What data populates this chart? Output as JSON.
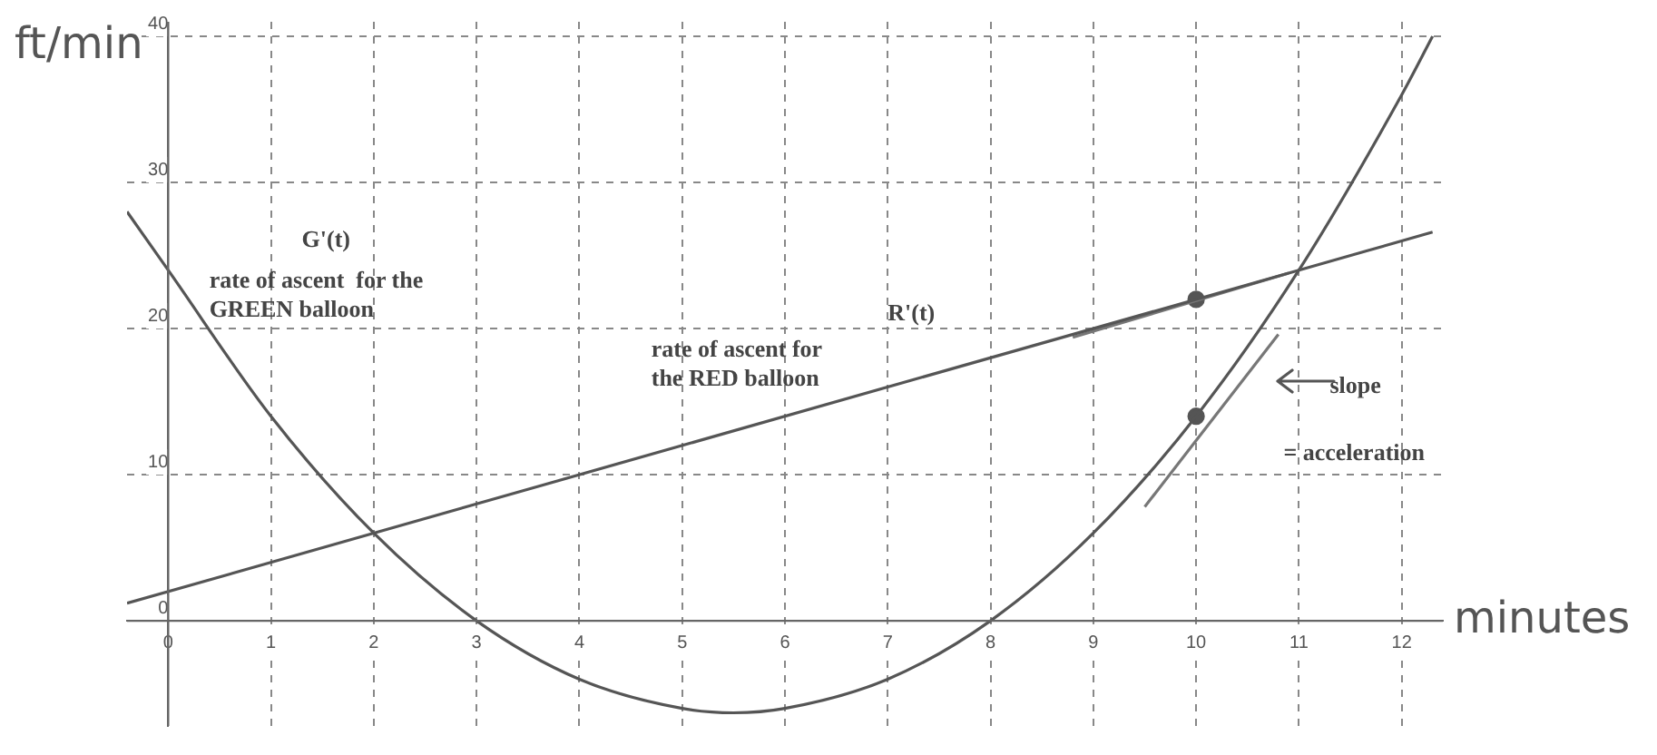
{
  "chart_data": {
    "type": "line",
    "xlabel": "minutes",
    "ylabel": "ft/min",
    "xlim": [
      -0.4,
      12.4
    ],
    "ylim": [
      -7.2,
      41
    ],
    "xticks": [
      0,
      1,
      2,
      3,
      4,
      5,
      6,
      7,
      8,
      9,
      10,
      11,
      12
    ],
    "yticks": [
      0,
      10,
      20,
      30,
      40
    ],
    "grid": true,
    "legend": false,
    "line_style": "solid",
    "series": [
      {
        "color": "#555555",
        "marker": "none",
        "x": [
          -0.4,
          0,
          1,
          2,
          3,
          4,
          5,
          5.5,
          6,
          7,
          8,
          9,
          10,
          11,
          12,
          12.3
        ],
        "values": [
          28,
          24,
          14,
          6,
          0,
          -4,
          -6,
          -6.3,
          -6,
          -4,
          0,
          6,
          14,
          24,
          36,
          40
        ]
      },
      {
        "color": "#555555",
        "marker": "none",
        "x": [
          -0.4,
          2,
          11,
          12.3
        ],
        "values": [
          1.2,
          6,
          24,
          26.6
        ]
      },
      {
        "color": "#777777",
        "marker": "none",
        "x": [
          8.8,
          10.9
        ],
        "values": [
          19.4,
          23.8
        ]
      },
      {
        "color": "#777777",
        "marker": "none",
        "x": [
          9.5,
          10.8
        ],
        "values": [
          7.8,
          19.6
        ]
      },
      {
        "type": "scatter",
        "color": "#555555",
        "marker": "circle",
        "x": [
          10,
          10
        ],
        "values": [
          22,
          14
        ]
      }
    ],
    "annotations": [
      "G'(t)",
      "rate of ascent  for the",
      "GREEN balloon",
      "rate of ascent for",
      "the RED balloon",
      "R'(t)",
      "slope",
      "= acceleration"
    ]
  }
}
